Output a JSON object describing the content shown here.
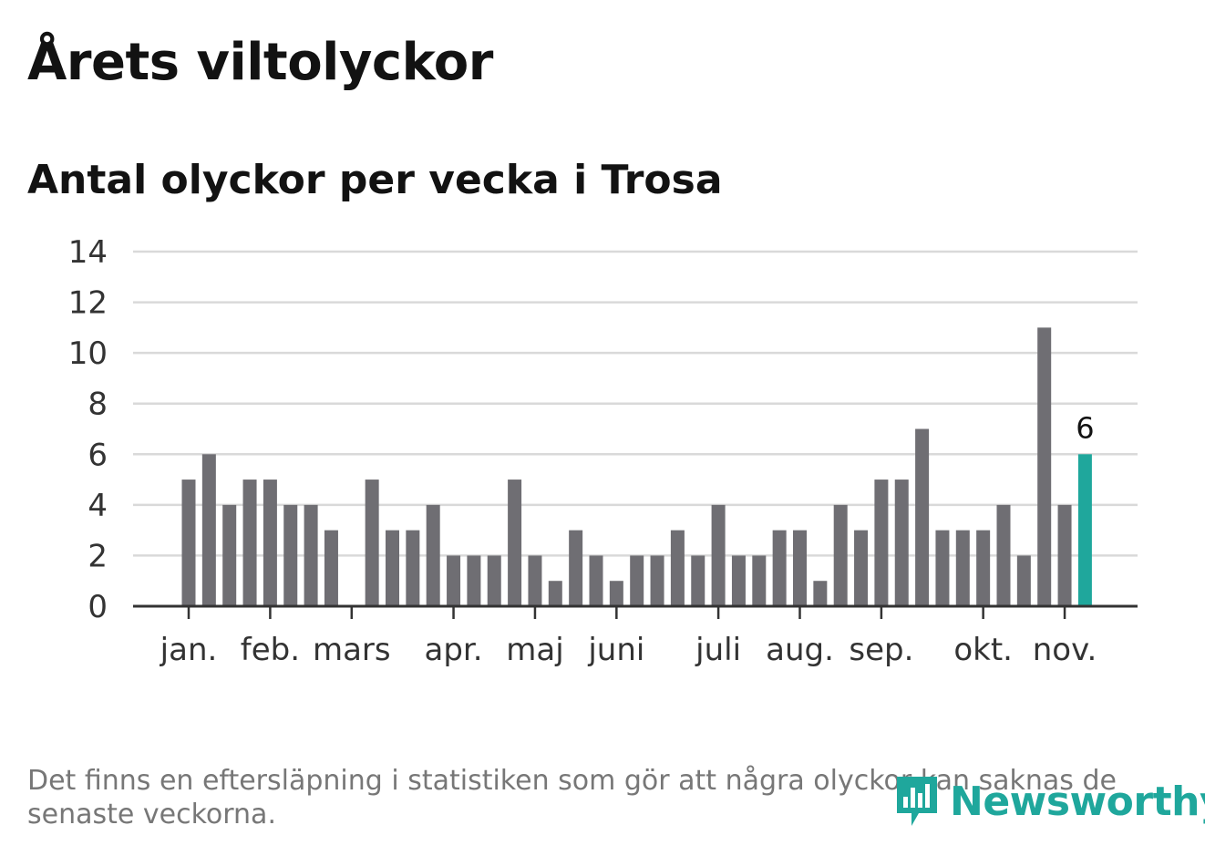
{
  "title": "Årets viltolyckor",
  "subtitle": "Antal olyckor per vecka i Trosa",
  "footnote": "Det finns en eftersläpning i statistiken som gör att några olyckor kan saknas de senaste veckorna.",
  "logo": {
    "text": "Newsworthy",
    "icon": "bar-chart-speech-bubble-icon"
  },
  "colors": {
    "bar": "#6f6e73",
    "highlight": "#1fa79c",
    "grid": "#d9d9d9",
    "axis": "#333333",
    "text": "#121212"
  },
  "chart_data": {
    "type": "bar",
    "title": "Antal olyckor per vecka i Trosa",
    "xlabel": "",
    "ylabel": "",
    "ylim": [
      0,
      14
    ],
    "yticks": [
      "0",
      "2",
      "4",
      "6",
      "8",
      "10",
      "12",
      "14"
    ],
    "grid": true,
    "values": [
      5,
      6,
      4,
      5,
      5,
      4,
      4,
      3,
      0,
      5,
      3,
      3,
      4,
      2,
      2,
      2,
      5,
      2,
      1,
      3,
      2,
      1,
      2,
      2,
      3,
      2,
      4,
      2,
      2,
      3,
      3,
      1,
      4,
      3,
      5,
      5,
      7,
      3,
      3,
      3,
      4,
      2,
      11,
      4,
      6
    ],
    "highlight_index": 44,
    "highlight_label": "6",
    "month_labels": [
      {
        "label": "jan.",
        "week_index": 0
      },
      {
        "label": "feb.",
        "week_index": 4
      },
      {
        "label": "mars",
        "week_index": 8
      },
      {
        "label": "apr.",
        "week_index": 13
      },
      {
        "label": "maj",
        "week_index": 17
      },
      {
        "label": "juni",
        "week_index": 21
      },
      {
        "label": "juli",
        "week_index": 26
      },
      {
        "label": "aug.",
        "week_index": 30
      },
      {
        "label": "sep.",
        "week_index": 34
      },
      {
        "label": "okt.",
        "week_index": 39
      },
      {
        "label": "nov.",
        "week_index": 43
      }
    ]
  }
}
